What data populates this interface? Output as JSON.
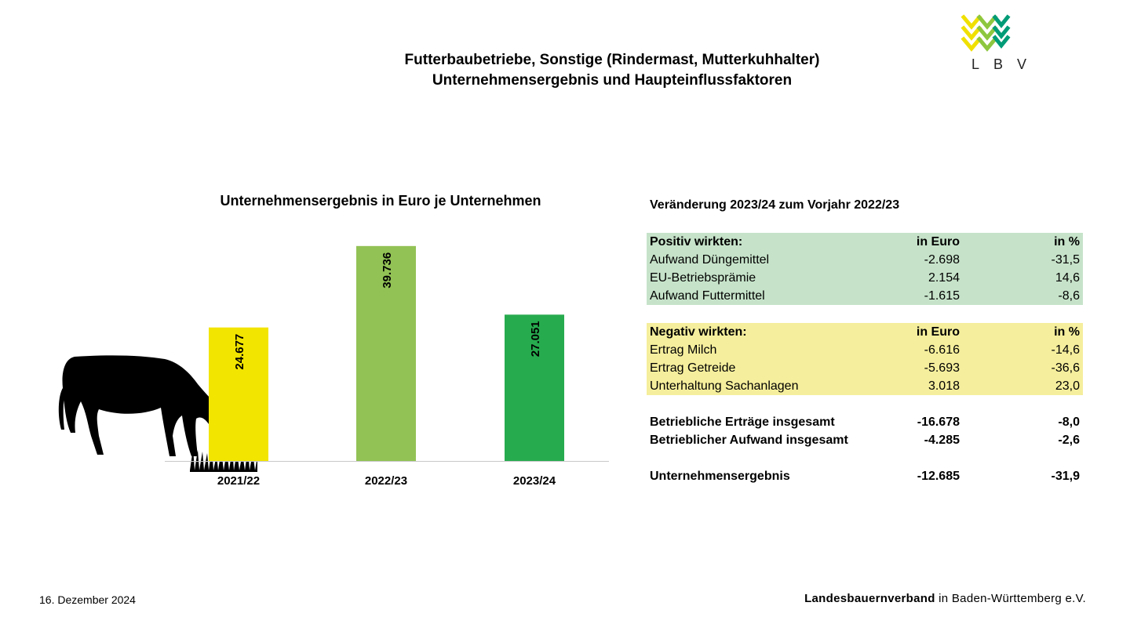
{
  "page": {
    "title_line1": "Futterbaubetriebe, Sonstige (Rindermast, Mutterkuhhalter)",
    "title_line2": "Unternehmensergebnis und Haupteinflussfaktoren"
  },
  "logo": {
    "letters": [
      "L",
      "B",
      "V"
    ],
    "colors": [
      "#f0e000",
      "#8dc63f",
      "#009b77"
    ]
  },
  "chart_data": {
    "type": "bar",
    "title": "Unternehmensergebnis in Euro je Unternehmen",
    "categories": [
      "2021/22",
      "2022/23",
      "2023/24"
    ],
    "values": [
      24677,
      39736,
      27051
    ],
    "value_labels": [
      "24.677",
      "39.736",
      "27.051"
    ],
    "colors": [
      "#f2e500",
      "#92c255",
      "#27ab4f"
    ],
    "ylim": [
      0,
      40000
    ],
    "grid": false,
    "legend": "none"
  },
  "table": {
    "title": "Veränderung 2023/24 zum Vorjahr 2022/23",
    "positive": {
      "header": {
        "label": "Positiv wirkten:",
        "eur": "in Euro",
        "pct": "in %"
      },
      "rows": [
        {
          "label": "Aufwand Düngemittel",
          "eur": "-2.698",
          "pct": "-31,5"
        },
        {
          "label": "EU-Betriebsprämie",
          "eur": "2.154",
          "pct": "14,6"
        },
        {
          "label": "Aufwand Futtermittel",
          "eur": "-1.615",
          "pct": "-8,6"
        }
      ]
    },
    "negative": {
      "header": {
        "label": "Negativ wirkten:",
        "eur": "in Euro",
        "pct": "in %"
      },
      "rows": [
        {
          "label": "Ertrag Milch",
          "eur": "-6.616",
          "pct": "-14,6"
        },
        {
          "label": "Ertrag Getreide",
          "eur": "-5.693",
          "pct": "-36,6"
        },
        {
          "label": "Unterhaltung Sachanlagen",
          "eur": "3.018",
          "pct": "23,0"
        }
      ]
    },
    "totals": [
      {
        "label": "Betriebliche Erträge insgesamt",
        "eur": "-16.678",
        "pct": "-8,0"
      },
      {
        "label": "Betrieblicher Aufwand insgesamt",
        "eur": "-4.285",
        "pct": "-2,6"
      }
    ],
    "result": {
      "label": "Unternehmensergebnis",
      "eur": "-12.685",
      "pct": "-31,9"
    }
  },
  "footer": {
    "date": "16. Dezember 2024",
    "org_bold": "Landesbauernverband",
    "org_rest": " in Baden-Württemberg e.V."
  }
}
